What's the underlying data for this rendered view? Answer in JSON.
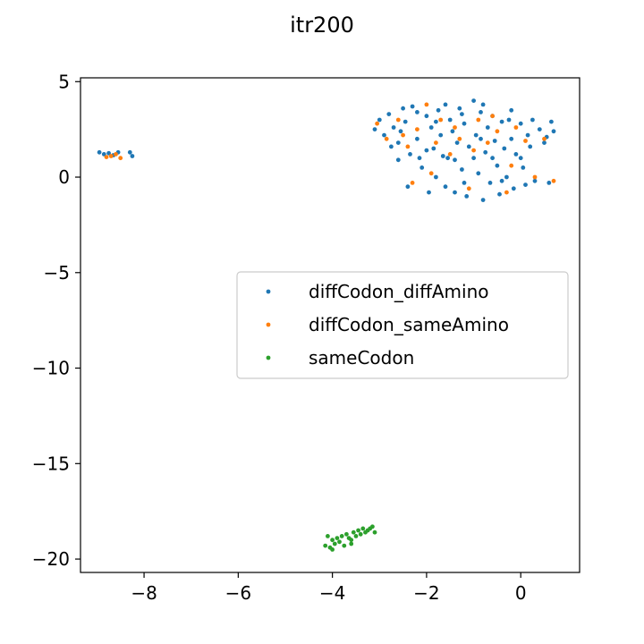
{
  "chart_data": {
    "type": "scatter",
    "title": "itr200",
    "xlabel": "",
    "ylabel": "",
    "xlim": [
      -9.35,
      1.25
    ],
    "ylim": [
      -20.7,
      5.2
    ],
    "xticks": [
      -8,
      -6,
      -4,
      -2,
      0
    ],
    "yticks": [
      5,
      0,
      -5,
      -10,
      -15,
      -20
    ],
    "grid": false,
    "legend": "center-right",
    "series": [
      {
        "name": "diffCodon_diffAmino",
        "color": "#1f77b4",
        "points": [
          [
            -8.95,
            1.3
          ],
          [
            -8.85,
            1.2
          ],
          [
            -8.75,
            1.25
          ],
          [
            -8.65,
            1.15
          ],
          [
            -8.55,
            1.3
          ],
          [
            -8.3,
            1.3
          ],
          [
            -8.25,
            1.1
          ],
          [
            -3.1,
            2.5
          ],
          [
            -3.0,
            3.0
          ],
          [
            -2.9,
            2.2
          ],
          [
            -2.8,
            3.3
          ],
          [
            -2.7,
            2.6
          ],
          [
            -2.6,
            1.8
          ],
          [
            -2.5,
            3.6
          ],
          [
            -2.45,
            2.9
          ],
          [
            -2.35,
            1.2
          ],
          [
            -2.3,
            3.7
          ],
          [
            -2.2,
            2.0
          ],
          [
            -2.1,
            0.5
          ],
          [
            -2.0,
            3.2
          ],
          [
            -1.9,
            2.6
          ],
          [
            -1.85,
            1.5
          ],
          [
            -1.8,
            0.0
          ],
          [
            -1.75,
            3.5
          ],
          [
            -1.7,
            2.2
          ],
          [
            -1.6,
            -0.5
          ],
          [
            -1.55,
            1.0
          ],
          [
            -1.5,
            3.0
          ],
          [
            -1.45,
            2.4
          ],
          [
            -1.4,
            -0.8
          ],
          [
            -1.35,
            1.8
          ],
          [
            -1.3,
            3.6
          ],
          [
            -1.25,
            0.4
          ],
          [
            -1.2,
            2.8
          ],
          [
            -1.15,
            -1.0
          ],
          [
            -1.1,
            1.6
          ],
          [
            -1.0,
            4.0
          ],
          [
            -0.95,
            2.2
          ],
          [
            -0.9,
            0.2
          ],
          [
            -0.85,
            3.4
          ],
          [
            -0.8,
            -1.2
          ],
          [
            -0.75,
            1.3
          ],
          [
            -0.7,
            2.6
          ],
          [
            -0.65,
            -0.3
          ],
          [
            -0.6,
            3.2
          ],
          [
            -0.55,
            1.9
          ],
          [
            -0.5,
            0.6
          ],
          [
            -0.45,
            -0.9
          ],
          [
            -0.4,
            2.9
          ],
          [
            -0.35,
            1.5
          ],
          [
            -0.3,
            0.0
          ],
          [
            -0.25,
            3.0
          ],
          [
            -0.2,
            2.0
          ],
          [
            -0.15,
            -0.6
          ],
          [
            -0.1,
            1.2
          ],
          [
            0.0,
            2.8
          ],
          [
            0.05,
            0.5
          ],
          [
            0.1,
            -0.4
          ],
          [
            0.15,
            2.2
          ],
          [
            0.2,
            1.6
          ],
          [
            0.25,
            3.0
          ],
          [
            0.3,
            -0.2
          ],
          [
            0.4,
            2.5
          ],
          [
            0.5,
            1.8
          ],
          [
            0.55,
            2.1
          ],
          [
            0.6,
            -0.3
          ],
          [
            0.65,
            2.9
          ],
          [
            0.7,
            2.4
          ],
          [
            -2.6,
            0.9
          ],
          [
            -2.4,
            -0.5
          ],
          [
            -2.2,
            3.4
          ],
          [
            -2.0,
            1.4
          ],
          [
            -1.8,
            2.9
          ],
          [
            -1.6,
            3.8
          ],
          [
            -1.4,
            0.9
          ],
          [
            -1.2,
            -0.3
          ],
          [
            -1.0,
            1.0
          ],
          [
            -0.8,
            3.8
          ],
          [
            -0.6,
            1.0
          ],
          [
            -0.4,
            -0.2
          ],
          [
            -0.2,
            3.5
          ],
          [
            0.0,
            1.0
          ],
          [
            -2.75,
            1.6
          ],
          [
            -2.55,
            2.4
          ],
          [
            -2.15,
            1.0
          ],
          [
            -1.95,
            -0.8
          ],
          [
            -1.65,
            1.1
          ],
          [
            -1.25,
            3.3
          ],
          [
            -0.85,
            2.0
          ]
        ]
      },
      {
        "name": "diffCodon_sameAmino",
        "color": "#ff7f0e",
        "points": [
          [
            -8.8,
            1.05
          ],
          [
            -8.7,
            1.1
          ],
          [
            -8.6,
            1.2
          ],
          [
            -8.5,
            1.0
          ],
          [
            -3.05,
            2.8
          ],
          [
            -2.85,
            2.0
          ],
          [
            -2.6,
            3.0
          ],
          [
            -2.4,
            1.6
          ],
          [
            -2.2,
            2.5
          ],
          [
            -2.0,
            3.8
          ],
          [
            -1.9,
            0.2
          ],
          [
            -1.7,
            3.0
          ],
          [
            -1.5,
            1.2
          ],
          [
            -1.3,
            2.0
          ],
          [
            -1.1,
            -0.6
          ],
          [
            -0.9,
            3.0
          ],
          [
            -0.7,
            1.8
          ],
          [
            -0.5,
            2.4
          ],
          [
            -0.3,
            -0.8
          ],
          [
            -0.1,
            2.6
          ],
          [
            0.1,
            1.9
          ],
          [
            0.3,
            0.0
          ],
          [
            0.5,
            2.0
          ],
          [
            0.7,
            -0.2
          ],
          [
            -2.5,
            2.2
          ],
          [
            -2.3,
            -0.3
          ],
          [
            -1.8,
            1.8
          ],
          [
            -1.4,
            2.6
          ],
          [
            -1.0,
            1.4
          ],
          [
            -0.6,
            3.2
          ],
          [
            -0.2,
            0.6
          ]
        ]
      },
      {
        "name": "sameCodon",
        "color": "#2ca02c",
        "points": [
          [
            -4.15,
            -19.3
          ],
          [
            -4.1,
            -18.8
          ],
          [
            -4.05,
            -19.4
          ],
          [
            -4.0,
            -19.0
          ],
          [
            -3.95,
            -19.2
          ],
          [
            -3.9,
            -18.9
          ],
          [
            -3.85,
            -19.1
          ],
          [
            -3.8,
            -18.8
          ],
          [
            -3.75,
            -19.3
          ],
          [
            -3.7,
            -18.7
          ],
          [
            -3.65,
            -18.9
          ],
          [
            -3.6,
            -19.0
          ],
          [
            -3.55,
            -18.6
          ],
          [
            -3.5,
            -18.8
          ],
          [
            -3.45,
            -18.5
          ],
          [
            -3.4,
            -18.7
          ],
          [
            -3.35,
            -18.4
          ],
          [
            -3.3,
            -18.6
          ],
          [
            -3.25,
            -18.5
          ],
          [
            -3.2,
            -18.4
          ],
          [
            -3.15,
            -18.3
          ],
          [
            -3.1,
            -18.6
          ],
          [
            -4.0,
            -19.5
          ],
          [
            -3.6,
            -19.2
          ]
        ]
      }
    ]
  }
}
